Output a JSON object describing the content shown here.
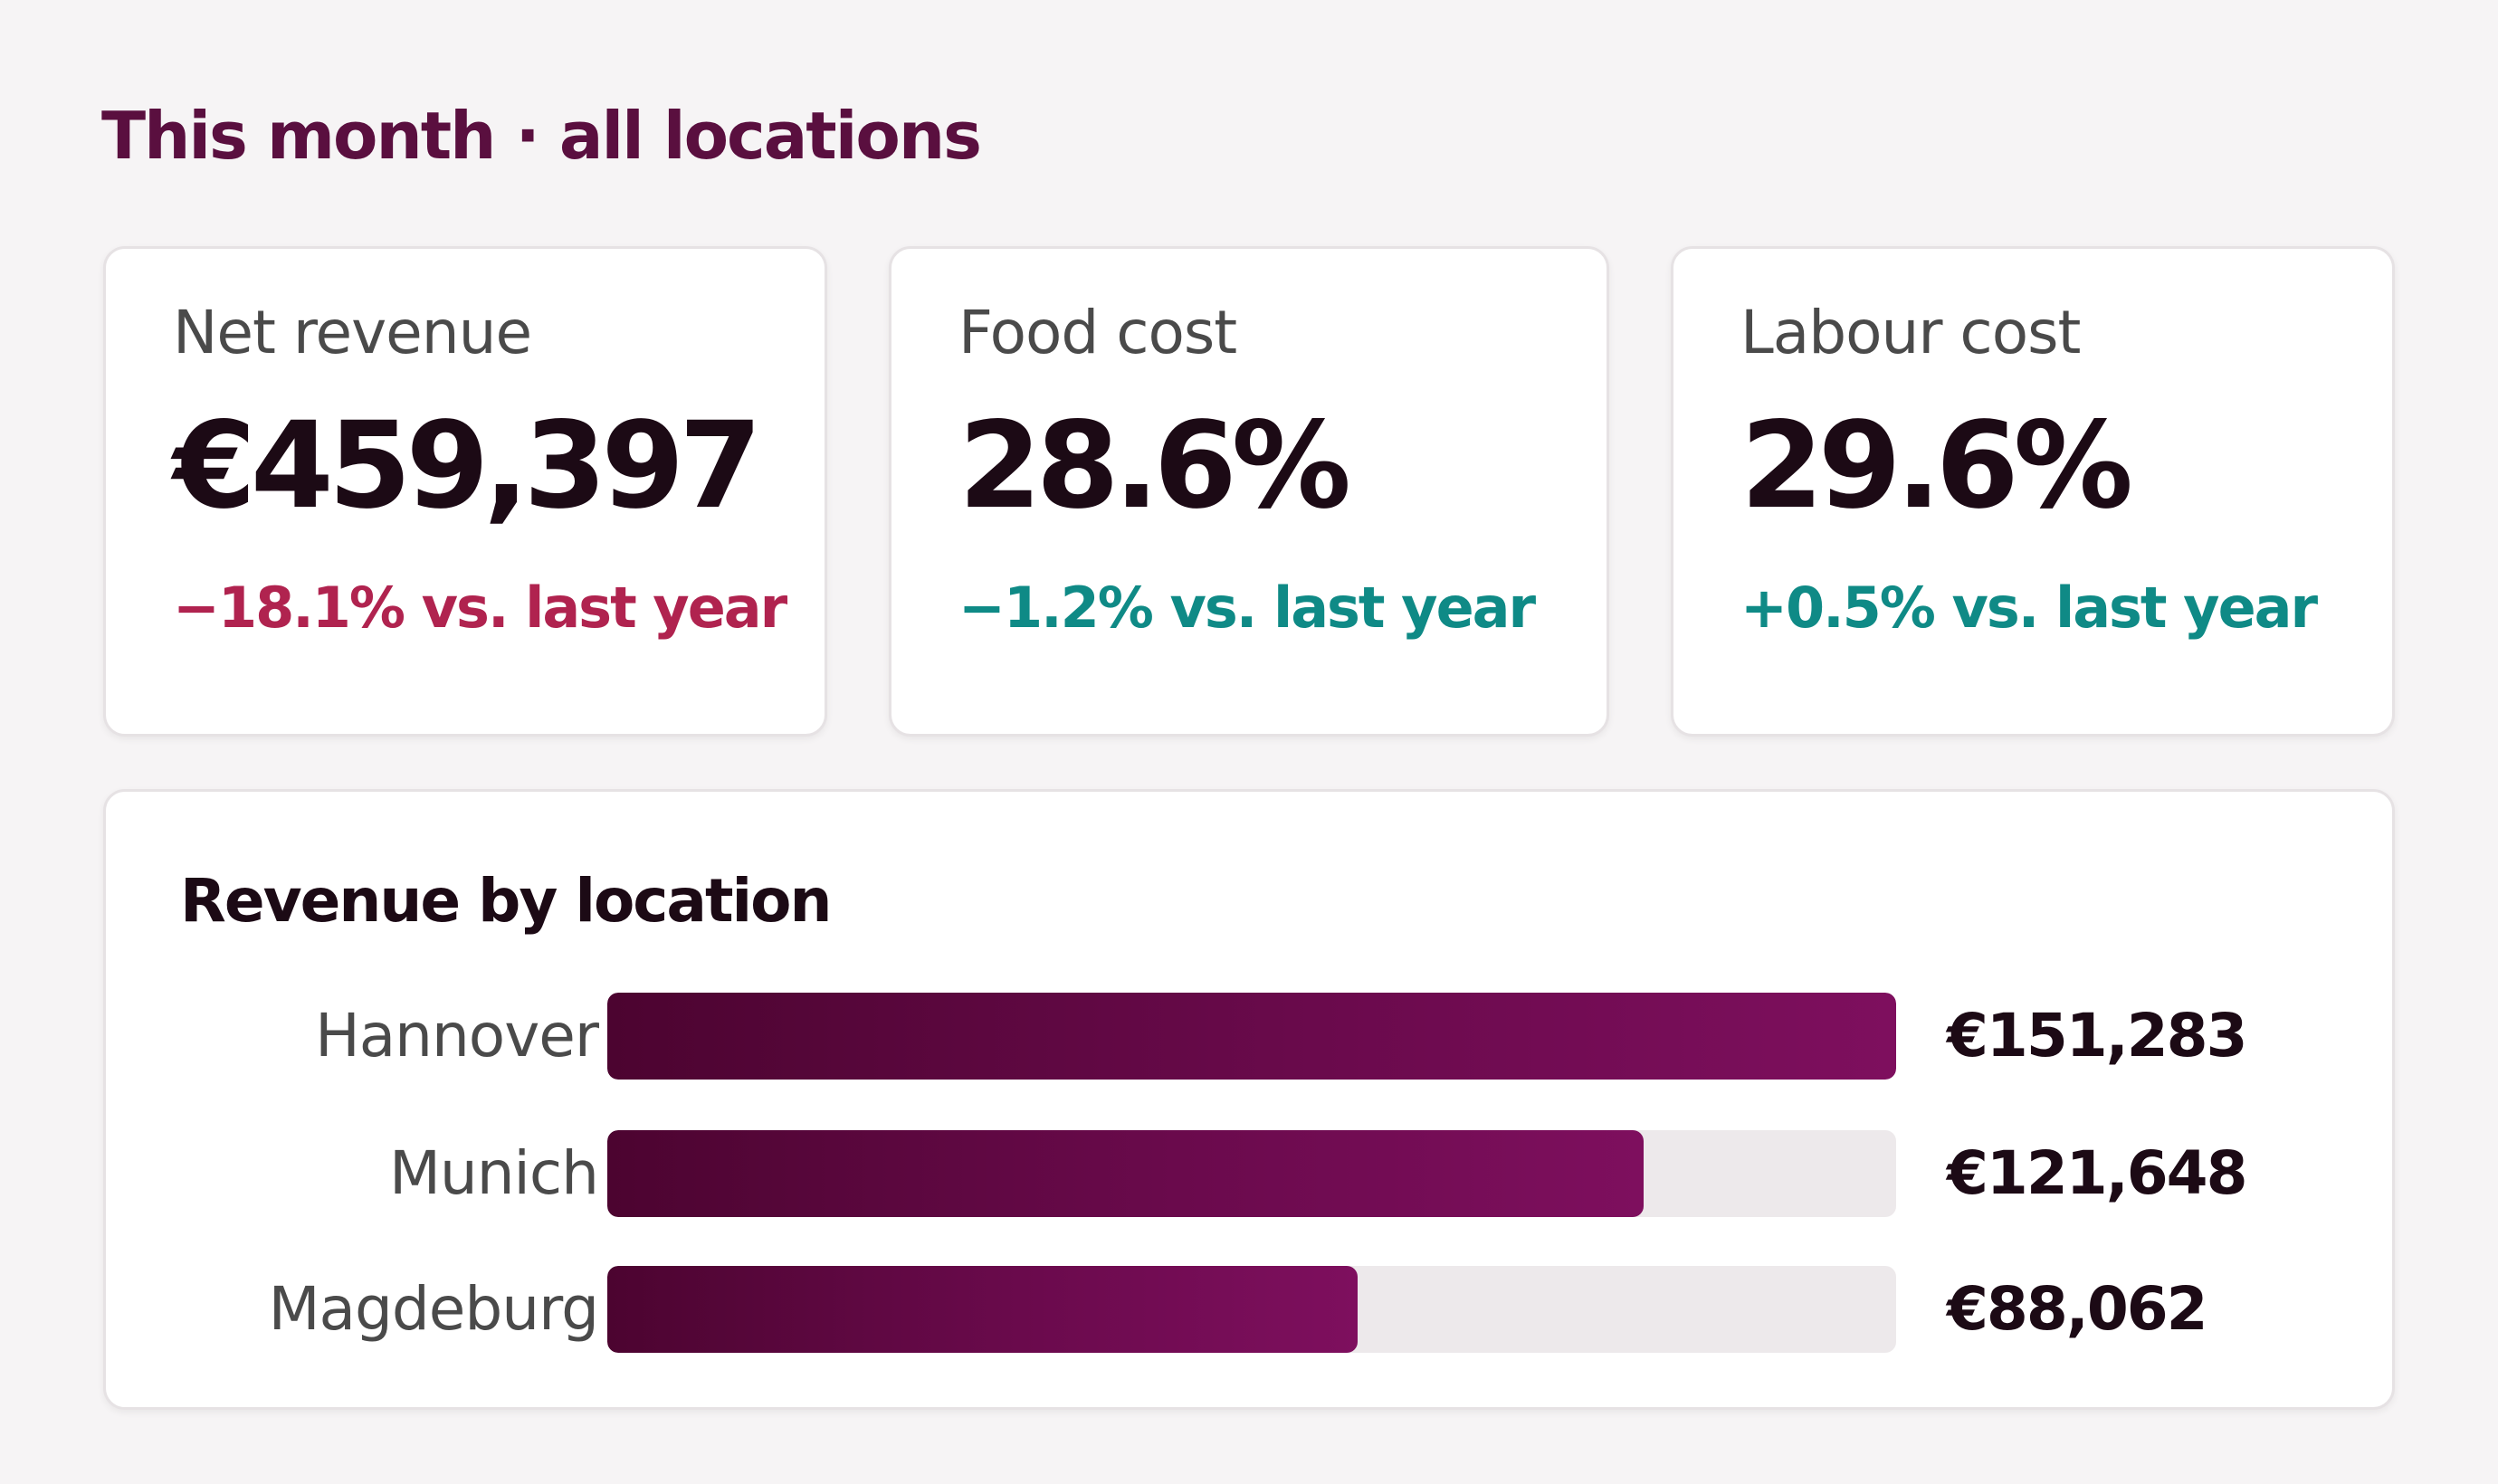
{
  "header": {
    "title": "This month · all locations"
  },
  "kpis": [
    {
      "label": "Net revenue",
      "value": "€459,397",
      "delta": "−18.1% vs. last year",
      "trend": "negative"
    },
    {
      "label": "Food cost",
      "value": "28.6%",
      "delta": "−1.2% vs. last year",
      "trend": "positive"
    },
    {
      "label": "Labour cost",
      "value": "29.6%",
      "delta": "+0.5% vs. last year",
      "trend": "positive"
    }
  ],
  "revenue_by_location": {
    "title": "Revenue by location",
    "rows": [
      {
        "name": "Hannover",
        "value_text": "€151,283",
        "value": 151283
      },
      {
        "name": "Munich",
        "value_text": "€121,648",
        "value": 121648
      },
      {
        "name": "Magdeburg",
        "value_text": "€88,062",
        "value": 88062
      }
    ]
  },
  "colors": {
    "negative": "#b0234f",
    "positive": "#0f8a86",
    "bar_start": "#4c0430",
    "bar_end": "#7e0f5e",
    "title": "#5a0f3f"
  },
  "chart_data": {
    "type": "bar",
    "title": "Revenue by location",
    "categories": [
      "Hannover",
      "Munich",
      "Magdeburg"
    ],
    "values": [
      151283,
      121648,
      88062
    ]
  }
}
